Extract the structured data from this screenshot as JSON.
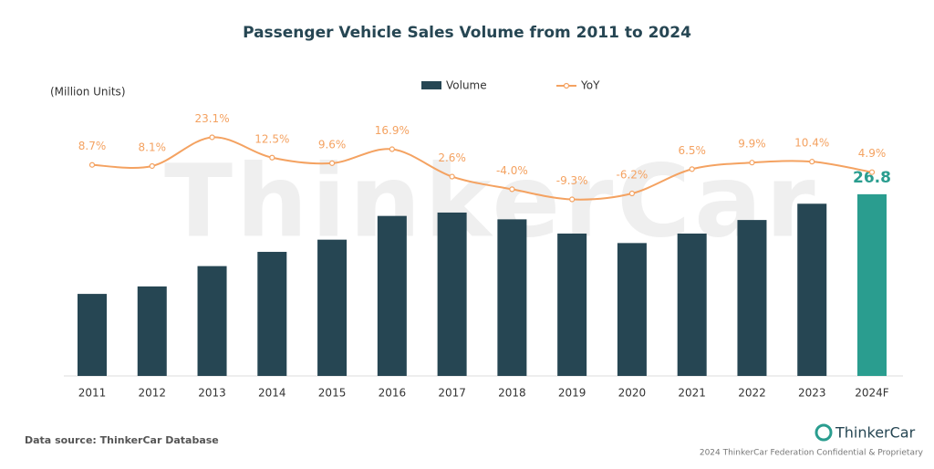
{
  "chart_data": {
    "type": "bar-line",
    "title": "Passenger Vehicle Sales Volume from 2011 to 2024",
    "unit_label": "(Million Units)",
    "watermark": "ThinkerCar",
    "categories": [
      "2011",
      "2012",
      "2013",
      "2014",
      "2015",
      "2016",
      "2017",
      "2018",
      "2019",
      "2020",
      "2021",
      "2022",
      "2023",
      "2024F"
    ],
    "series": [
      {
        "name": "Volume",
        "type": "bar",
        "color": "#264653",
        "colors": [
          "#264653",
          "#264653",
          "#264653",
          "#264653",
          "#264653",
          "#264653",
          "#264653",
          "#264653",
          "#264653",
          "#264653",
          "#264653",
          "#264653",
          "#264653",
          "#2a9d8f"
        ],
        "values": [
          12.1,
          13.2,
          16.2,
          18.3,
          20.1,
          23.6,
          24.1,
          23.1,
          21.0,
          19.6,
          21.0,
          23.0,
          25.4,
          26.8
        ]
      },
      {
        "name": "YoY",
        "type": "line",
        "color": "#f4a261",
        "values": [
          8.7,
          8.1,
          23.1,
          12.5,
          9.6,
          16.9,
          2.6,
          -4.0,
          -9.3,
          -6.2,
          6.5,
          9.9,
          10.4,
          4.9
        ],
        "value_labels": [
          "8.7%",
          "8.1%",
          "23.1%",
          "12.5%",
          "9.6%",
          "16.9%",
          "2.6%",
          "-4.0%",
          "-9.3%",
          "-6.2%",
          "6.5%",
          "9.9%",
          "10.4%",
          "4.9%"
        ]
      }
    ],
    "source": "Data source: ThinkerCar Database",
    "brand": "ThinkerCar",
    "footer": "2024 ThinkerCar Federation Confidential & Proprietary"
  }
}
